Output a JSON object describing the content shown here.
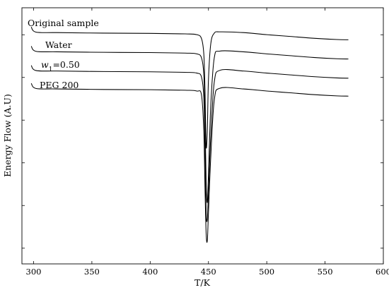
{
  "chart_data": {
    "type": "line",
    "xlabel": "T/K",
    "ylabel": "Energy Flow (A.U)",
    "xlim": [
      290,
      600
    ],
    "ylim": [
      0,
      100
    ],
    "xticks": [
      300,
      350,
      400,
      450,
      500,
      550,
      600
    ],
    "yticks_count": 6,
    "grid": false,
    "series": [
      {
        "name": "Original sample",
        "x": [
          298,
          302,
          320,
          360,
          400,
          430,
          440,
          444,
          446,
          447,
          448,
          449,
          450,
          452,
          455,
          460,
          480,
          500,
          520,
          540,
          560,
          570
        ],
        "y": [
          92.5,
          90.5,
          90.3,
          90.1,
          90.0,
          89.8,
          89.5,
          88.0,
          82.0,
          68.0,
          46.0,
          52.0,
          72.0,
          86.0,
          90.1,
          90.6,
          90.3,
          89.5,
          88.8,
          88.1,
          87.6,
          87.5
        ]
      },
      {
        "name": "Water",
        "x": [
          298,
          302,
          320,
          360,
          400,
          430,
          440,
          444,
          446,
          447,
          448,
          449,
          450,
          452,
          455,
          460,
          480,
          500,
          520,
          540,
          560,
          570
        ],
        "y": [
          85.0,
          83.0,
          82.8,
          82.6,
          82.5,
          82.3,
          82.0,
          80.5,
          74.0,
          58.0,
          32.0,
          24.0,
          35.0,
          62.0,
          80.5,
          83.1,
          82.8,
          82.0,
          81.3,
          80.6,
          80.1,
          80.0
        ]
      },
      {
        "name": "w1=0.50",
        "x": [
          298,
          302,
          320,
          360,
          400,
          430,
          440,
          444,
          446,
          447,
          448,
          449,
          450,
          452,
          455,
          460,
          480,
          500,
          520,
          540,
          560,
          570
        ],
        "y": [
          77.5,
          75.5,
          75.3,
          75.1,
          75.0,
          74.8,
          74.5,
          73.0,
          65.0,
          45.0,
          20.0,
          17.5,
          28.0,
          50.0,
          71.0,
          75.6,
          75.3,
          74.5,
          73.8,
          73.1,
          72.6,
          72.5
        ]
      },
      {
        "name": "PEG 200",
        "x": [
          298,
          302,
          320,
          360,
          400,
          430,
          440,
          444,
          446,
          447,
          448,
          449,
          450,
          452,
          455,
          460,
          480,
          500,
          520,
          540,
          560,
          570
        ],
        "y": [
          70.5,
          68.5,
          68.3,
          68.1,
          68.0,
          67.8,
          67.5,
          66.0,
          52.0,
          30.0,
          12.0,
          9.0,
          20.0,
          42.0,
          64.0,
          68.6,
          68.3,
          67.5,
          66.8,
          66.1,
          65.6,
          65.5
        ]
      }
    ]
  }
}
